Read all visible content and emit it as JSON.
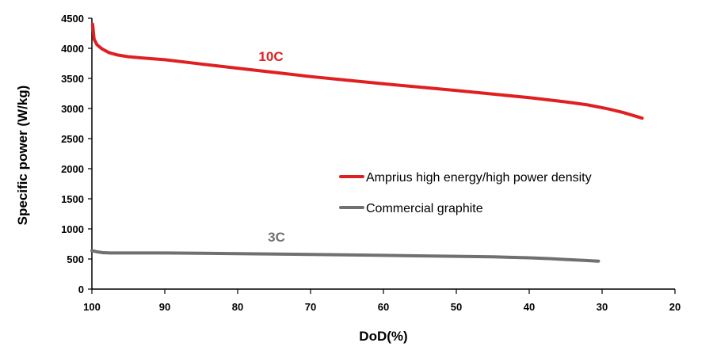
{
  "chart_data": {
    "type": "line",
    "xlabel": "DoD(%)",
    "ylabel": "Specific power (W/kg)",
    "xlim": [
      100,
      20
    ],
    "ylim": [
      0,
      4500
    ],
    "x_reversed": true,
    "xticks": [
      "100",
      "90",
      "80",
      "70",
      "60",
      "50",
      "40",
      "30",
      "20"
    ],
    "yticks": [
      "0",
      "500",
      "1000",
      "1500",
      "2000",
      "2500",
      "3000",
      "3500",
      "4000",
      "4500"
    ],
    "grid": false,
    "legend_position": "center-right",
    "series": [
      {
        "name": "Amprius high energy/high power density",
        "rate_label": "10C",
        "color": "#e02020",
        "x": [
          99.9,
          99.7,
          99.3,
          98.6,
          97.7,
          96.5,
          95,
          93,
          90,
          85,
          80,
          75,
          70,
          65,
          60,
          55,
          50,
          45,
          40,
          35,
          32,
          29,
          27,
          24.5
        ],
        "y": [
          4400,
          4150,
          4060,
          3990,
          3930,
          3890,
          3860,
          3840,
          3810,
          3740,
          3670,
          3600,
          3530,
          3470,
          3410,
          3355,
          3300,
          3240,
          3180,
          3110,
          3060,
          2990,
          2930,
          2840
        ]
      },
      {
        "name": "Commercial graphite",
        "rate_label": "3C",
        "color": "#707070",
        "x": [
          100,
          99.3,
          98.5,
          97.5,
          95,
          90,
          85,
          80,
          70,
          60,
          50,
          45,
          40,
          37,
          35,
          33,
          30.5
        ],
        "y": [
          640,
          620,
          605,
          600,
          600,
          600,
          595,
          590,
          575,
          560,
          545,
          535,
          520,
          505,
          492,
          480,
          465
        ]
      }
    ]
  }
}
